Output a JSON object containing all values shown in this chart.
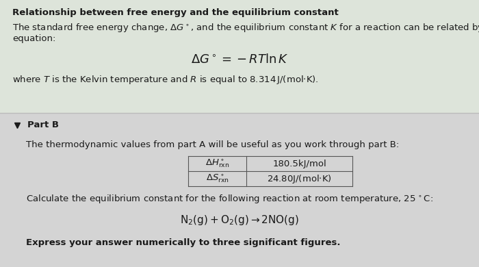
{
  "title": "Relationship between free energy and the equilibrium constant",
  "bg_top": "#dde4da",
  "bg_bottom": "#d4d4d4",
  "text_color": "#1a1a1a",
  "part_b_label": "Part B",
  "table_row1_label": "$\\Delta H^\\circ_{\\rm rxn}$",
  "table_row1_value": "180.5kJ/mol",
  "table_row2_label": "$\\Delta S^\\circ_{\\rm rxn}$",
  "table_row2_value": "24.80J/(mol$\\cdot$K)",
  "express_text": "Express your answer numerically to three significant figures."
}
